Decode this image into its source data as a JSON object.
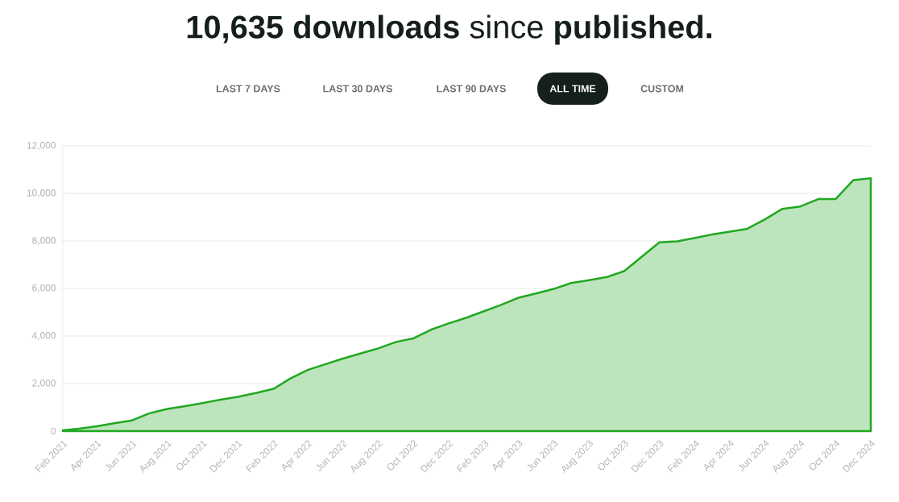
{
  "chart_data": {
    "type": "area",
    "title": "**10,635 downloads** since **published.**",
    "annotations": [
      "LAST 7 DAYS",
      "LAST 30 DAYS",
      "LAST 90 DAYS",
      "ALL TIME",
      "CUSTOM"
    ],
    "x": [
      "2021-02",
      "2021-03",
      "2021-04",
      "2021-05",
      "2021-06",
      "2021-07",
      "2021-08",
      "2021-09",
      "2021-10",
      "2021-11",
      "2021-12",
      "2022-01",
      "2022-02",
      "2022-03",
      "2022-04",
      "2022-05",
      "2022-06",
      "2022-07",
      "2022-08",
      "2022-09",
      "2022-10",
      "2022-11",
      "2022-12",
      "2023-01",
      "2023-02",
      "2023-03",
      "2023-04",
      "2023-05",
      "2023-06",
      "2023-07",
      "2023-08",
      "2023-09",
      "2023-10",
      "2023-11",
      "2023-12",
      "2024-01",
      "2024-02",
      "2024-03",
      "2024-04",
      "2024-05",
      "2024-06",
      "2024-07",
      "2024-08",
      "2024-09",
      "2024-10",
      "2024-11",
      "2024-12"
    ],
    "values": [
      30,
      100,
      200,
      330,
      450,
      750,
      930,
      1050,
      1180,
      1320,
      1440,
      1600,
      1780,
      2200,
      2570,
      2810,
      3050,
      3260,
      3480,
      3750,
      3900,
      4270,
      4530,
      4770,
      5050,
      5300,
      5610,
      5790,
      5980,
      6230,
      6350,
      6480,
      6730,
      7350,
      7940,
      7980,
      8130,
      8270,
      8390,
      8510,
      8910,
      9350,
      9450,
      9760,
      9760,
      10560,
      10635
    ],
    "color": "#22a722",
    "xlim": [
      "2021-02",
      "2024-12"
    ],
    "ylim": [
      0,
      12000
    ],
    "xticks": [
      {
        "value": "2021-02",
        "label": "Feb 2021"
      },
      {
        "value": "2021-04",
        "label": "Apr 2021"
      },
      {
        "value": "2021-06",
        "label": "Jun 2021"
      },
      {
        "value": "2021-08",
        "label": "Aug 2021"
      },
      {
        "value": "2021-10",
        "label": "Oct 2021"
      },
      {
        "value": "2021-12",
        "label": "Dec 2021"
      },
      {
        "value": "2022-02",
        "label": "Feb 2022"
      },
      {
        "value": "2022-04",
        "label": "Apr 2022"
      },
      {
        "value": "2022-06",
        "label": "Jun 2022"
      },
      {
        "value": "2022-08",
        "label": "Aug 2022"
      },
      {
        "value": "2022-10",
        "label": "Oct 2022"
      },
      {
        "value": "2022-12",
        "label": "Dec 2022"
      },
      {
        "value": "2023-02",
        "label": "Feb 2023"
      },
      {
        "value": "2023-04",
        "label": "Apr 2023"
      },
      {
        "value": "2023-06",
        "label": "Jun 2023"
      },
      {
        "value": "2023-08",
        "label": "Aug 2023"
      },
      {
        "value": "2023-10",
        "label": "Oct 2023"
      },
      {
        "value": "2023-12",
        "label": "Dec 2023"
      },
      {
        "value": "2024-02",
        "label": "Feb 2024"
      },
      {
        "value": "2024-04",
        "label": "Apr 2024"
      },
      {
        "value": "2024-06",
        "label": "Jun 2024"
      },
      {
        "value": "2024-08",
        "label": "Aug 2024"
      },
      {
        "value": "2024-10",
        "label": "Oct 2024"
      },
      {
        "value": "2024-12",
        "label": "Dec 2024"
      }
    ],
    "yticks": [
      0,
      {
        "value": 2000,
        "label": "2,000"
      },
      {
        "value": 4000,
        "label": "4,000"
      },
      {
        "value": 6000,
        "label": "6,000"
      },
      {
        "value": 8000,
        "label": "8,000"
      },
      {
        "value": 10000,
        "label": "10,000"
      },
      {
        "value": 12000,
        "label": "12,000"
      }
    ],
    "grid": "y"
  }
}
